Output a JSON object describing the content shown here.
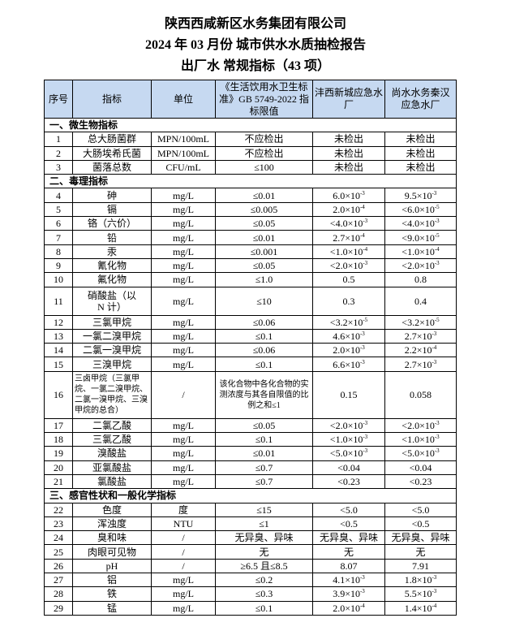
{
  "titles": [
    "陕西西咸新区水务集团有限公司",
    "2024 年 03 月份  城市供水水质抽检报告",
    "出厂水 常规指标（43 项）"
  ],
  "header": {
    "no": "序号",
    "item": "指标",
    "unit": "单位",
    "limit": "《生活饮用水卫生标准》GB 5749-2022 指标限值",
    "plant1": "沣西新城应急水厂",
    "plant2": "尚水水务秦汉应急水厂"
  },
  "sections": [
    {
      "title": "一、微生物指标",
      "rows": [
        [
          "1",
          "总大肠菌群",
          "MPN/100mL",
          "不应检出",
          "未检出",
          "未检出"
        ],
        [
          "2",
          "大肠埃希氏菌",
          "MPN/100mL",
          "不应检出",
          "未检出",
          "未检出"
        ],
        [
          "3",
          "菌落总数",
          "CFU/mL",
          "≤100",
          "未检出",
          "未检出"
        ]
      ]
    },
    {
      "title": "二、毒理指标",
      "rows": [
        [
          "4",
          "砷",
          "mg/L",
          "≤0.01",
          {
            "b": "6.0×10",
            "e": "-3"
          },
          {
            "b": "9.5×10",
            "e": "-3"
          }
        ],
        [
          "5",
          "镉",
          "mg/L",
          "≤0.005",
          {
            "b": "2.0×10",
            "e": "-4"
          },
          {
            "b": "<6.0×10",
            "e": "-5"
          }
        ],
        [
          "6",
          "铬（六价）",
          "mg/L",
          "≤0.05",
          {
            "b": "<4.0×10",
            "e": "-3"
          },
          {
            "b": "<4.0×10",
            "e": "-3"
          }
        ],
        [
          "7",
          "铅",
          "mg/L",
          "≤0.01",
          {
            "b": "2.7×10",
            "e": "-4"
          },
          {
            "b": "<9.0×10",
            "e": "-5"
          }
        ],
        [
          "8",
          "汞",
          "mg/L",
          "≤0.001",
          {
            "b": "<1.0×10",
            "e": "-4"
          },
          {
            "b": "<1.0×10",
            "e": "-4"
          }
        ],
        [
          "9",
          "氰化物",
          "mg/L",
          "≤0.05",
          {
            "b": "<2.0×10",
            "e": "-3"
          },
          {
            "b": "<2.0×10",
            "e": "-3"
          }
        ],
        [
          "10",
          "氟化物",
          "mg/L",
          "≤1.0",
          "0.5",
          "0.8"
        ],
        [
          "11",
          "硝酸盐（以 N 计）",
          "mg/L",
          "≤10",
          "0.3",
          "0.4"
        ],
        [
          "12",
          "三氯甲烷",
          "mg/L",
          "≤0.06",
          {
            "b": "<3.2×10",
            "e": "-5"
          },
          {
            "b": "<3.2×10",
            "e": "-5"
          }
        ],
        [
          "13",
          "一氯二溴甲烷",
          "mg/L",
          "≤0.1",
          {
            "b": "4.6×10",
            "e": "-3"
          },
          {
            "b": "2.7×10",
            "e": "-3"
          }
        ],
        [
          "14",
          "二氯一溴甲烷",
          "mg/L",
          "≤0.06",
          {
            "b": "2.0×10",
            "e": "-3"
          },
          {
            "b": "2.2×10",
            "e": "-4"
          }
        ],
        [
          "15",
          "三溴甲烷",
          "mg/L",
          "≤0.1",
          {
            "b": "6.6×10",
            "e": "-3"
          },
          {
            "b": "2.7×10",
            "e": "-3"
          }
        ],
        [
          "16",
          "三卤甲烷（三氯甲烷、一氯二溴甲烷、二氯一溴甲烷、三溴甲烷的总合）",
          "/",
          "该化合物中各化合物的实测浓度与其各自限值的比例之和≤1",
          "0.15",
          "0.058"
        ],
        [
          "17",
          "二氯乙酸",
          "mg/L",
          "≤0.05",
          {
            "b": "<2.0×10",
            "e": "-3"
          },
          {
            "b": "<2.0×10",
            "e": "-3"
          }
        ],
        [
          "18",
          "三氯乙酸",
          "mg/L",
          "≤0.1",
          {
            "b": "<1.0×10",
            "e": "-3"
          },
          {
            "b": "<1.0×10",
            "e": "-3"
          }
        ],
        [
          "19",
          "溴酸盐",
          "mg/L",
          "≤0.01",
          {
            "b": "<5.0×10",
            "e": "-3"
          },
          {
            "b": "<5.0×10",
            "e": "-3"
          }
        ],
        [
          "20",
          "亚氯酸盐",
          "mg/L",
          "≤0.7",
          "<0.04",
          "<0.04"
        ],
        [
          "21",
          "氯酸盐",
          "mg/L",
          "≤0.7",
          "<0.23",
          "<0.23"
        ]
      ]
    },
    {
      "title": "三、感官性状和一般化学指标",
      "rows": [
        [
          "22",
          "色度",
          "度",
          "≤15",
          "<5.0",
          "<5.0"
        ],
        [
          "23",
          "浑浊度",
          "NTU",
          "≤1",
          "<0.5",
          "<0.5"
        ],
        [
          "24",
          "臭和味",
          "/",
          "无异臭、异味",
          "无异臭、异味",
          "无异臭、异味"
        ],
        [
          "25",
          "肉眼可见物",
          "/",
          "无",
          "无",
          "无"
        ],
        [
          "26",
          "pH",
          "/",
          "≥6.5 且≤8.5",
          "8.07",
          "7.91"
        ],
        [
          "27",
          "铝",
          "mg/L",
          "≤0.2",
          {
            "b": "4.1×10",
            "e": "-3"
          },
          {
            "b": "1.8×10",
            "e": "-3"
          }
        ],
        [
          "28",
          "铁",
          "mg/L",
          "≤0.3",
          {
            "b": "3.9×10",
            "e": "-3"
          },
          {
            "b": "5.5×10",
            "e": "-3"
          }
        ],
        [
          "29",
          "锰",
          "mg/L",
          "≤0.1",
          {
            "b": "2.0×10",
            "e": "-4"
          },
          {
            "b": "1.4×10",
            "e": "-4"
          }
        ]
      ]
    }
  ]
}
